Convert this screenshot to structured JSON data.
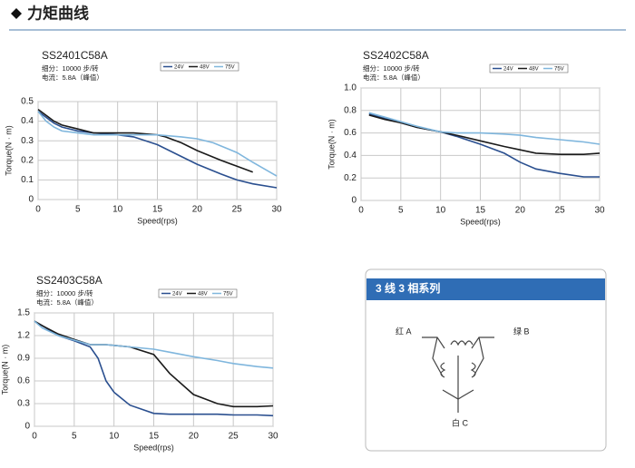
{
  "header": {
    "title": "力矩曲线"
  },
  "chart_data": [
    {
      "type": "line",
      "title": "SS2401C58A",
      "subtitle": [
        "细分：10000 步/转",
        "电流：5.8A（峰值）"
      ],
      "x_label": "Speed(rps)",
      "y_label": "Torque(N · m)",
      "xlim": [
        0,
        30
      ],
      "xticks": [
        0,
        5,
        10,
        15,
        20,
        25,
        30
      ],
      "ylim": [
        0,
        0.5
      ],
      "yticks": [
        0,
        0.1,
        0.2,
        0.3,
        0.4,
        0.5
      ],
      "grid": true,
      "series": [
        {
          "name": "24V",
          "color": "#2a4f8f",
          "x": [
            0,
            1,
            2,
            3,
            5,
            7,
            10,
            12,
            15,
            18,
            20,
            23,
            25,
            27,
            30
          ],
          "values": [
            0.45,
            0.42,
            0.39,
            0.37,
            0.35,
            0.34,
            0.33,
            0.32,
            0.28,
            0.22,
            0.18,
            0.13,
            0.1,
            0.08,
            0.06
          ]
        },
        {
          "name": "48V",
          "color": "#1a1a1a",
          "x": [
            0,
            1,
            2,
            3,
            5,
            7,
            10,
            12,
            15,
            16,
            18,
            20,
            23,
            25,
            27
          ],
          "values": [
            0.46,
            0.43,
            0.4,
            0.38,
            0.36,
            0.34,
            0.34,
            0.34,
            0.33,
            0.32,
            0.29,
            0.25,
            0.2,
            0.17,
            0.14
          ]
        },
        {
          "name": "75V",
          "color": "#7fb6dd",
          "x": [
            0,
            1,
            2,
            3,
            5,
            7,
            10,
            12,
            15,
            18,
            20,
            22,
            25,
            27,
            30
          ],
          "values": [
            0.45,
            0.4,
            0.37,
            0.35,
            0.34,
            0.33,
            0.33,
            0.33,
            0.33,
            0.32,
            0.31,
            0.29,
            0.24,
            0.19,
            0.12
          ]
        }
      ]
    },
    {
      "type": "line",
      "title": "SS2402C58A",
      "subtitle": [
        "细分：10000 步/转",
        "电流：5.8A（峰值）"
      ],
      "x_label": "Speed(rps)",
      "y_label": "Torque(N · m)",
      "xlim": [
        0,
        30
      ],
      "xticks": [
        0,
        5,
        10,
        15,
        20,
        25,
        30
      ],
      "ylim": [
        0,
        1
      ],
      "yticks": [
        0,
        0.2,
        0.4,
        0.6,
        0.8,
        {
          "value": 1,
          "label": "1.0"
        }
      ],
      "grid": true,
      "series": [
        {
          "name": "24V",
          "color": "#2a4f8f",
          "x": [
            1,
            3,
            5,
            7,
            10,
            12,
            15,
            18,
            20,
            22,
            25,
            28,
            30
          ],
          "values": [
            0.77,
            0.73,
            0.69,
            0.65,
            0.61,
            0.57,
            0.5,
            0.42,
            0.34,
            0.28,
            0.24,
            0.21,
            0.21
          ]
        },
        {
          "name": "48V",
          "color": "#1a1a1a",
          "x": [
            1,
            3,
            5,
            7,
            10,
            12,
            15,
            18,
            20,
            22,
            25,
            28,
            30
          ],
          "values": [
            0.76,
            0.72,
            0.69,
            0.65,
            0.61,
            0.58,
            0.53,
            0.48,
            0.45,
            0.42,
            0.41,
            0.41,
            0.42
          ]
        },
        {
          "name": "75V",
          "color": "#7fb6dd",
          "x": [
            1,
            3,
            5,
            7,
            10,
            12,
            15,
            18,
            20,
            22,
            25,
            28,
            30
          ],
          "values": [
            0.78,
            0.74,
            0.7,
            0.66,
            0.61,
            0.6,
            0.6,
            0.59,
            0.58,
            0.56,
            0.54,
            0.52,
            0.5
          ]
        }
      ]
    },
    {
      "type": "line",
      "title": "SS2403C58A",
      "subtitle": [
        "细分：10000 步/转",
        "电流：5.8A（峰值）"
      ],
      "x_label": "Speed(rps)",
      "y_label": "Torque(N · m)",
      "xlim": [
        0,
        30
      ],
      "xticks": [
        0,
        5,
        10,
        15,
        20,
        25,
        30
      ],
      "ylim": [
        0,
        1.5
      ],
      "yticks": [
        0,
        0.3,
        0.6,
        0.9,
        1.2,
        1.5
      ],
      "grid": true,
      "series": [
        {
          "name": "24V",
          "color": "#2a4f8f",
          "x": [
            0,
            1,
            3,
            5,
            7,
            8,
            9,
            10,
            12,
            15,
            17,
            20,
            23,
            25,
            28,
            30
          ],
          "values": [
            1.39,
            1.33,
            1.2,
            1.13,
            1.05,
            0.9,
            0.6,
            0.45,
            0.28,
            0.17,
            0.16,
            0.16,
            0.16,
            0.15,
            0.15,
            0.14
          ]
        },
        {
          "name": "48V",
          "color": "#1a1a1a",
          "x": [
            0,
            1,
            3,
            5,
            7,
            8,
            9,
            10,
            12,
            15,
            17,
            20,
            23,
            25,
            28,
            30
          ],
          "values": [
            1.39,
            1.33,
            1.22,
            1.15,
            1.08,
            1.08,
            1.08,
            1.07,
            1.05,
            0.95,
            0.7,
            0.42,
            0.3,
            0.26,
            0.26,
            0.27
          ]
        },
        {
          "name": "75V",
          "color": "#7fb6dd",
          "x": [
            0,
            1,
            3,
            5,
            7,
            8,
            9,
            10,
            12,
            15,
            17,
            20,
            23,
            25,
            28,
            30
          ],
          "values": [
            1.39,
            1.3,
            1.2,
            1.14,
            1.08,
            1.08,
            1.08,
            1.07,
            1.05,
            1.02,
            0.98,
            0.92,
            0.87,
            0.83,
            0.79,
            0.77
          ]
        }
      ]
    }
  ],
  "diagram": {
    "title": "3 线 3 相系列",
    "labels": [
      "红 A",
      "绿 B",
      "白 C"
    ]
  }
}
